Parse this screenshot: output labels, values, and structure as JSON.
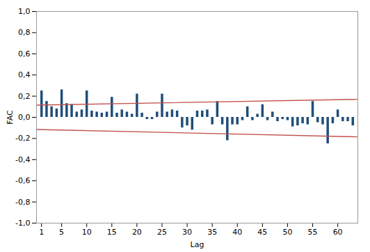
{
  "chart_data": {
    "type": "bar",
    "x_label": "Lag",
    "y_label": "FAC",
    "x": [
      1,
      2,
      3,
      4,
      5,
      6,
      7,
      8,
      9,
      10,
      11,
      12,
      13,
      14,
      15,
      16,
      17,
      18,
      19,
      20,
      21,
      22,
      23,
      24,
      25,
      26,
      27,
      28,
      29,
      30,
      31,
      32,
      33,
      34,
      35,
      36,
      37,
      38,
      39,
      40,
      41,
      42,
      43,
      44,
      45,
      46,
      47,
      48,
      49,
      50,
      51,
      52,
      53,
      54,
      55,
      56,
      57,
      58,
      59,
      60,
      61,
      62,
      63
    ],
    "series": [
      {
        "type": "bar",
        "color": "#1F4E79",
        "values": [
          0.25,
          0.15,
          0.1,
          0.08,
          0.26,
          0.13,
          0.12,
          0.05,
          0.07,
          0.25,
          0.06,
          0.05,
          0.04,
          0.05,
          0.19,
          0.04,
          0.07,
          0.05,
          0.03,
          0.22,
          0.04,
          -0.02,
          -0.02,
          0.05,
          0.22,
          0.05,
          0.07,
          0.06,
          -0.1,
          -0.08,
          -0.12,
          0.06,
          0.06,
          0.07,
          -0.07,
          0.15,
          -0.07,
          -0.22,
          -0.07,
          -0.07,
          -0.03,
          0.1,
          -0.03,
          0.03,
          0.12,
          -0.03,
          0.05,
          -0.04,
          -0.02,
          -0.03,
          -0.09,
          -0.08,
          -0.06,
          -0.07,
          0.15,
          -0.05,
          -0.07,
          -0.25,
          -0.06,
          0.07,
          -0.04,
          -0.04,
          -0.08
        ]
      },
      {
        "type": "line",
        "color": "#C0504D",
        "x": [
          0.0,
          64.0
        ],
        "values": [
          0.115,
          0.17
        ]
      },
      {
        "type": "line",
        "color": "#C0504D",
        "x": [
          0.0,
          64.0
        ],
        "values": [
          -0.115,
          -0.185
        ]
      }
    ],
    "xlim": [
      0.0,
      64.0
    ],
    "xticks": [
      1,
      5,
      10,
      15,
      20,
      25,
      30,
      35,
      40,
      45,
      50,
      55,
      60
    ],
    "ylim": [
      -1.0,
      1.0
    ],
    "yticks": [
      {
        "value": -1.0,
        "label": "-1,0"
      },
      {
        "value": -0.8,
        "label": "-0,8"
      },
      {
        "value": -0.6,
        "label": "-0,6"
      },
      {
        "value": -0.4,
        "label": "-0,4"
      },
      {
        "value": -0.2,
        "label": "-0,2"
      },
      {
        "value": 0.0,
        "label": "0,0"
      },
      {
        "value": 0.2,
        "label": "0,2"
      },
      {
        "value": 0.4,
        "label": "0,4"
      },
      {
        "value": 0.6,
        "label": "0,6"
      },
      {
        "value": 0.8,
        "label": "0,8"
      },
      {
        "value": 1.0,
        "label": "1,0"
      }
    ],
    "grid": false
  }
}
